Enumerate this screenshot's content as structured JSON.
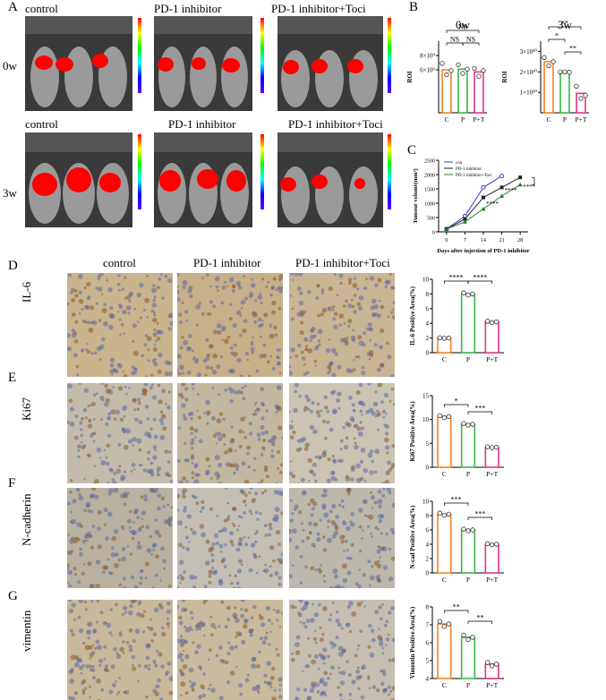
{
  "panels": {
    "A": "A",
    "B": "B",
    "C": "C",
    "D": "D",
    "E": "E",
    "F": "F",
    "G": "G"
  },
  "imaging": {
    "groups": [
      "control",
      "PD-1 inhibitor",
      "PD-1 inhibitor+Toci"
    ],
    "timepoints": [
      "0w",
      "3w"
    ]
  },
  "histology": {
    "groups": [
      "control",
      "PD-1 inhibitor",
      "PD-1 inhibitor+Toci"
    ],
    "markers": [
      "IL-6",
      "Ki67",
      "N-cadherin",
      "vimentin"
    ]
  },
  "colors": {
    "C": "#f5821f",
    "P": "#39b54a",
    "PT": "#e8308a"
  },
  "chart_data": [
    {
      "id": "roi_0w",
      "type": "bar",
      "title": "0w",
      "ylabel": "ROI",
      "categories": [
        "C",
        "P",
        "P+T"
      ],
      "values": [
        6000000000.0,
        6100000000.0,
        5700000000.0
      ],
      "points": [
        [
          6900000000.0,
          5300000000.0,
          5900000000.0
        ],
        [
          6700000000.0,
          5500000000.0,
          6100000000.0
        ],
        [
          6200000000.0,
          5100000000.0,
          5900000000.0
        ]
      ],
      "ylim": [
        0,
        10000000000.0
      ],
      "yticks": [
        "6×10⁹",
        "8×10⁹"
      ],
      "significance": [
        "NS",
        "NS",
        "NS"
      ]
    },
    {
      "id": "roi_3w",
      "type": "bar",
      "title": "3w",
      "ylabel": "ROI",
      "categories": [
        "C",
        "P",
        "P+T"
      ],
      "values": [
        25000000000.0,
        20000000000.0,
        9500000000.0
      ],
      "points": [
        [
          27000000000.0,
          23000000000.0,
          25000000000.0
        ],
        [
          20000000000.0,
          20000000000.0,
          19800000000.0
        ],
        [
          13000000000.0,
          7000000000.0,
          8500000000.0
        ]
      ],
      "ylim": [
        0,
        35000000000.0
      ],
      "yticks": [
        "1×10¹⁰",
        "2×10¹⁰",
        "3×10¹⁰"
      ],
      "significance": [
        "**",
        "*",
        "**"
      ]
    },
    {
      "id": "tumor_volume",
      "type": "line",
      "ylabel": "Tumour volume(mm³)",
      "xlabel": "Days after injection of PD-1 inhibitor",
      "x": [
        0,
        7,
        14,
        21,
        28
      ],
      "series": [
        {
          "name": "con",
          "values": [
            100,
            550,
            1550,
            1950,
            null
          ]
        },
        {
          "name": "PD-1 inhibitor",
          "values": [
            100,
            450,
            1200,
            1550,
            1900
          ]
        },
        {
          "name": "PD-1 inhibitor+Toci",
          "values": [
            100,
            350,
            800,
            1250,
            1650
          ]
        }
      ],
      "ylim": [
        0,
        2500
      ],
      "yticks": [
        "0",
        "500",
        "1000",
        "1500",
        "2000",
        "2500"
      ],
      "significance": [
        "****",
        "****",
        "****"
      ]
    },
    {
      "id": "il6",
      "type": "bar",
      "ylabel": "IL-6 Positive Area(%)",
      "categories": [
        "C",
        "P",
        "P+T"
      ],
      "values": [
        2.0,
        8.0,
        4.2
      ],
      "ylim": [
        0,
        10
      ],
      "yticks": [
        "0",
        "2",
        "4",
        "6",
        "8",
        "10"
      ],
      "significance": [
        "****",
        "****"
      ]
    },
    {
      "id": "ki67",
      "type": "bar",
      "ylabel": "Ki67 Positive Area(%)",
      "categories": [
        "C",
        "P",
        "P+T"
      ],
      "values": [
        10.6,
        9.0,
        4.2
      ],
      "ylim": [
        0,
        15
      ],
      "yticks": [
        "0",
        "5",
        "10",
        "15"
      ],
      "significance": [
        "*",
        "***"
      ]
    },
    {
      "id": "ncad",
      "type": "bar",
      "ylabel": "N-cad Positive Area(%)",
      "categories": [
        "C",
        "P",
        "P+T"
      ],
      "values": [
        8.2,
        6.0,
        4.0
      ],
      "ylim": [
        0,
        10
      ],
      "yticks": [
        "0",
        "2",
        "4",
        "6",
        "8",
        "10"
      ],
      "significance": [
        "***",
        "***"
      ]
    },
    {
      "id": "vim",
      "type": "bar",
      "ylabel": "Vimentin Positive Area(%)",
      "categories": [
        "C",
        "P",
        "P+T"
      ],
      "values": [
        7.05,
        6.3,
        4.8
      ],
      "ylim": [
        4,
        8
      ],
      "yticks": [
        "4",
        "5",
        "6",
        "7",
        "8"
      ],
      "significance": [
        "**",
        "**"
      ]
    }
  ]
}
